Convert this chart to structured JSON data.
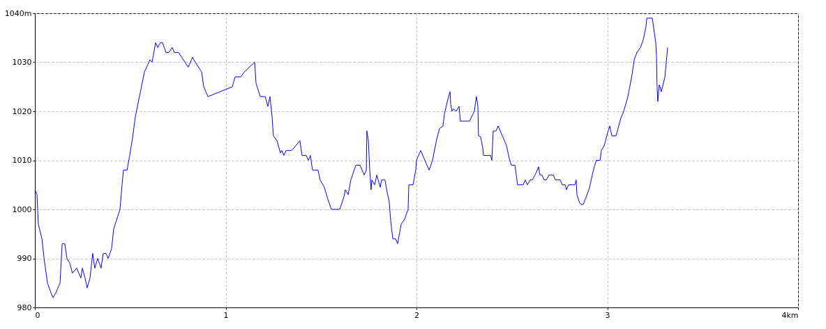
{
  "chart_data": {
    "type": "line",
    "grid": true,
    "marker": "none",
    "line_style": "solid",
    "xlim": [
      0,
      4
    ],
    "xticks": [
      0,
      1,
      2,
      3,
      {
        "value": 4,
        "label": "4km"
      }
    ],
    "ylim": [
      980,
      1040
    ],
    "yticks": [
      980,
      990,
      1000,
      1010,
      1020,
      1030,
      {
        "value": 1040,
        "label": "1040m"
      }
    ],
    "series": [
      {
        "color": "#0000ff",
        "x": [
          0,
          0.011,
          0.018,
          0.037,
          0.048,
          0.066,
          0.084,
          0.095,
          0.11,
          0.132,
          0.143,
          0.157,
          0.168,
          0.183,
          0.197,
          0.219,
          0.241,
          0.249,
          0.263,
          0.274,
          0.289,
          0.303,
          0.314,
          0.329,
          0.347,
          0.358,
          0.373,
          0.384,
          0.402,
          0.413,
          0.446,
          0.457,
          0.464,
          0.483,
          0.497,
          0.512,
          0.527,
          0.548,
          0.574,
          0.603,
          0.614,
          0.633,
          0.644,
          0.658,
          0.669,
          0.687,
          0.702,
          0.72,
          0.731,
          0.753,
          0.804,
          0.826,
          0.841,
          0.874,
          0.885,
          0.907,
          1.035,
          1.049,
          1.079,
          1.097,
          1.152,
          1.159,
          1.181,
          1.207,
          1.221,
          1.232,
          1.243,
          1.25,
          1.269,
          1.287,
          1.294,
          1.305,
          1.316,
          1.346,
          1.389,
          1.4,
          1.422,
          1.433,
          1.444,
          1.455,
          1.484,
          1.495,
          1.517,
          1.536,
          1.554,
          1.598,
          1.62,
          1.627,
          1.642,
          1.656,
          1.682,
          1.704,
          1.726,
          1.737,
          1.74,
          1.748,
          1.755,
          1.762,
          1.766,
          1.781,
          1.792,
          1.81,
          1.817,
          1.835,
          1.846,
          1.857,
          1.865,
          1.876,
          1.89,
          1.901,
          1.92,
          1.938,
          1.956,
          1.96,
          1.982,
          1.996,
          2.0,
          2.011,
          2.022,
          2.055,
          2.066,
          2.084,
          2.106,
          2.121,
          2.139,
          2.146,
          2.168,
          2.176,
          2.179,
          2.186,
          2.194,
          2.208,
          2.223,
          2.23,
          2.278,
          2.303,
          2.314,
          2.322,
          2.325,
          2.336,
          2.347,
          2.351,
          2.388,
          2.395,
          2.402,
          2.417,
          2.428,
          2.45,
          2.472,
          2.486,
          2.497,
          2.516,
          2.53,
          2.559,
          2.57,
          2.581,
          2.596,
          2.607,
          2.625,
          2.64,
          2.647,
          2.658,
          2.669,
          2.68,
          2.695,
          2.717,
          2.728,
          2.753,
          2.764,
          2.779,
          2.786,
          2.797,
          2.83,
          2.837,
          2.841,
          2.852,
          2.863,
          2.874,
          2.888,
          2.907,
          2.921,
          2.932,
          2.943,
          2.962,
          2.969,
          2.984,
          2.991,
          3.002,
          3.013,
          3.024,
          3.046,
          3.053,
          3.071,
          3.086,
          3.108,
          3.13,
          3.141,
          3.155,
          3.174,
          3.188,
          3.203,
          3.207,
          3.236,
          3.243,
          3.254,
          3.258,
          3.261,
          3.265,
          3.272,
          3.276,
          3.283,
          3.302,
          3.309,
          3.316
        ],
        "values": [
          1004,
          1003,
          997,
          994,
          990,
          985,
          983,
          982,
          983,
          985,
          993,
          993,
          990,
          989,
          987,
          988,
          986,
          988,
          986,
          984,
          986,
          991,
          988,
          990,
          988,
          991,
          991,
          990,
          992,
          996,
          1000,
          1005,
          1008,
          1008,
          1011,
          1014.6,
          1019,
          1023,
          1028,
          1030.5,
          1030,
          1034,
          1033,
          1034,
          1034,
          1032,
          1032,
          1033,
          1032,
          1032,
          1029,
          1031,
          1030,
          1028,
          1025,
          1023,
          1025,
          1027,
          1027,
          1028,
          1030,
          1025.7,
          1023,
          1023,
          1021,
          1023,
          1019,
          1015,
          1014,
          1011.5,
          1012,
          1011,
          1012,
          1012,
          1014,
          1011,
          1011,
          1010,
          1011,
          1008,
          1008,
          1006,
          1004.5,
          1002,
          1000,
          1000,
          1002.6,
          1004,
          1003,
          1006,
          1009,
          1009,
          1007,
          1008,
          1016,
          1014,
          1008,
          1004,
          1006,
          1005,
          1007,
          1004.5,
          1006,
          1006,
          1003.5,
          1001.6,
          997.6,
          994,
          994,
          993,
          997,
          998,
          1000,
          1005,
          1005,
          1008,
          1010,
          1011,
          1012,
          1009,
          1008,
          1010,
          1014.3,
          1016.5,
          1017,
          1019.4,
          1023,
          1024,
          1021.5,
          1020,
          1020.5,
          1020,
          1021,
          1018,
          1018,
          1020,
          1023,
          1021,
          1015,
          1014.8,
          1012.6,
          1011,
          1011,
          1010,
          1016,
          1016,
          1017,
          1015,
          1013,
          1010.4,
          1009,
          1009,
          1005,
          1005,
          1006,
          1005,
          1006,
          1006,
          1007.3,
          1008.7,
          1007,
          1007,
          1006,
          1006,
          1007,
          1007,
          1006,
          1006,
          1005,
          1005,
          1004,
          1005,
          1005,
          1006,
          1003,
          1001.6,
          1001,
          1001,
          1002.4,
          1004.4,
          1007,
          1008.7,
          1010,
          1010,
          1012,
          1013,
          1014,
          1015.7,
          1017,
          1015,
          1015,
          1016,
          1018.6,
          1020,
          1023,
          1027.5,
          1030.5,
          1032,
          1033,
          1034.5,
          1037.3,
          1039,
          1039,
          1037,
          1034,
          1031,
          1025,
          1022,
          1025.4,
          1025,
          1024,
          1027,
          1030,
          1033
        ]
      }
    ]
  }
}
